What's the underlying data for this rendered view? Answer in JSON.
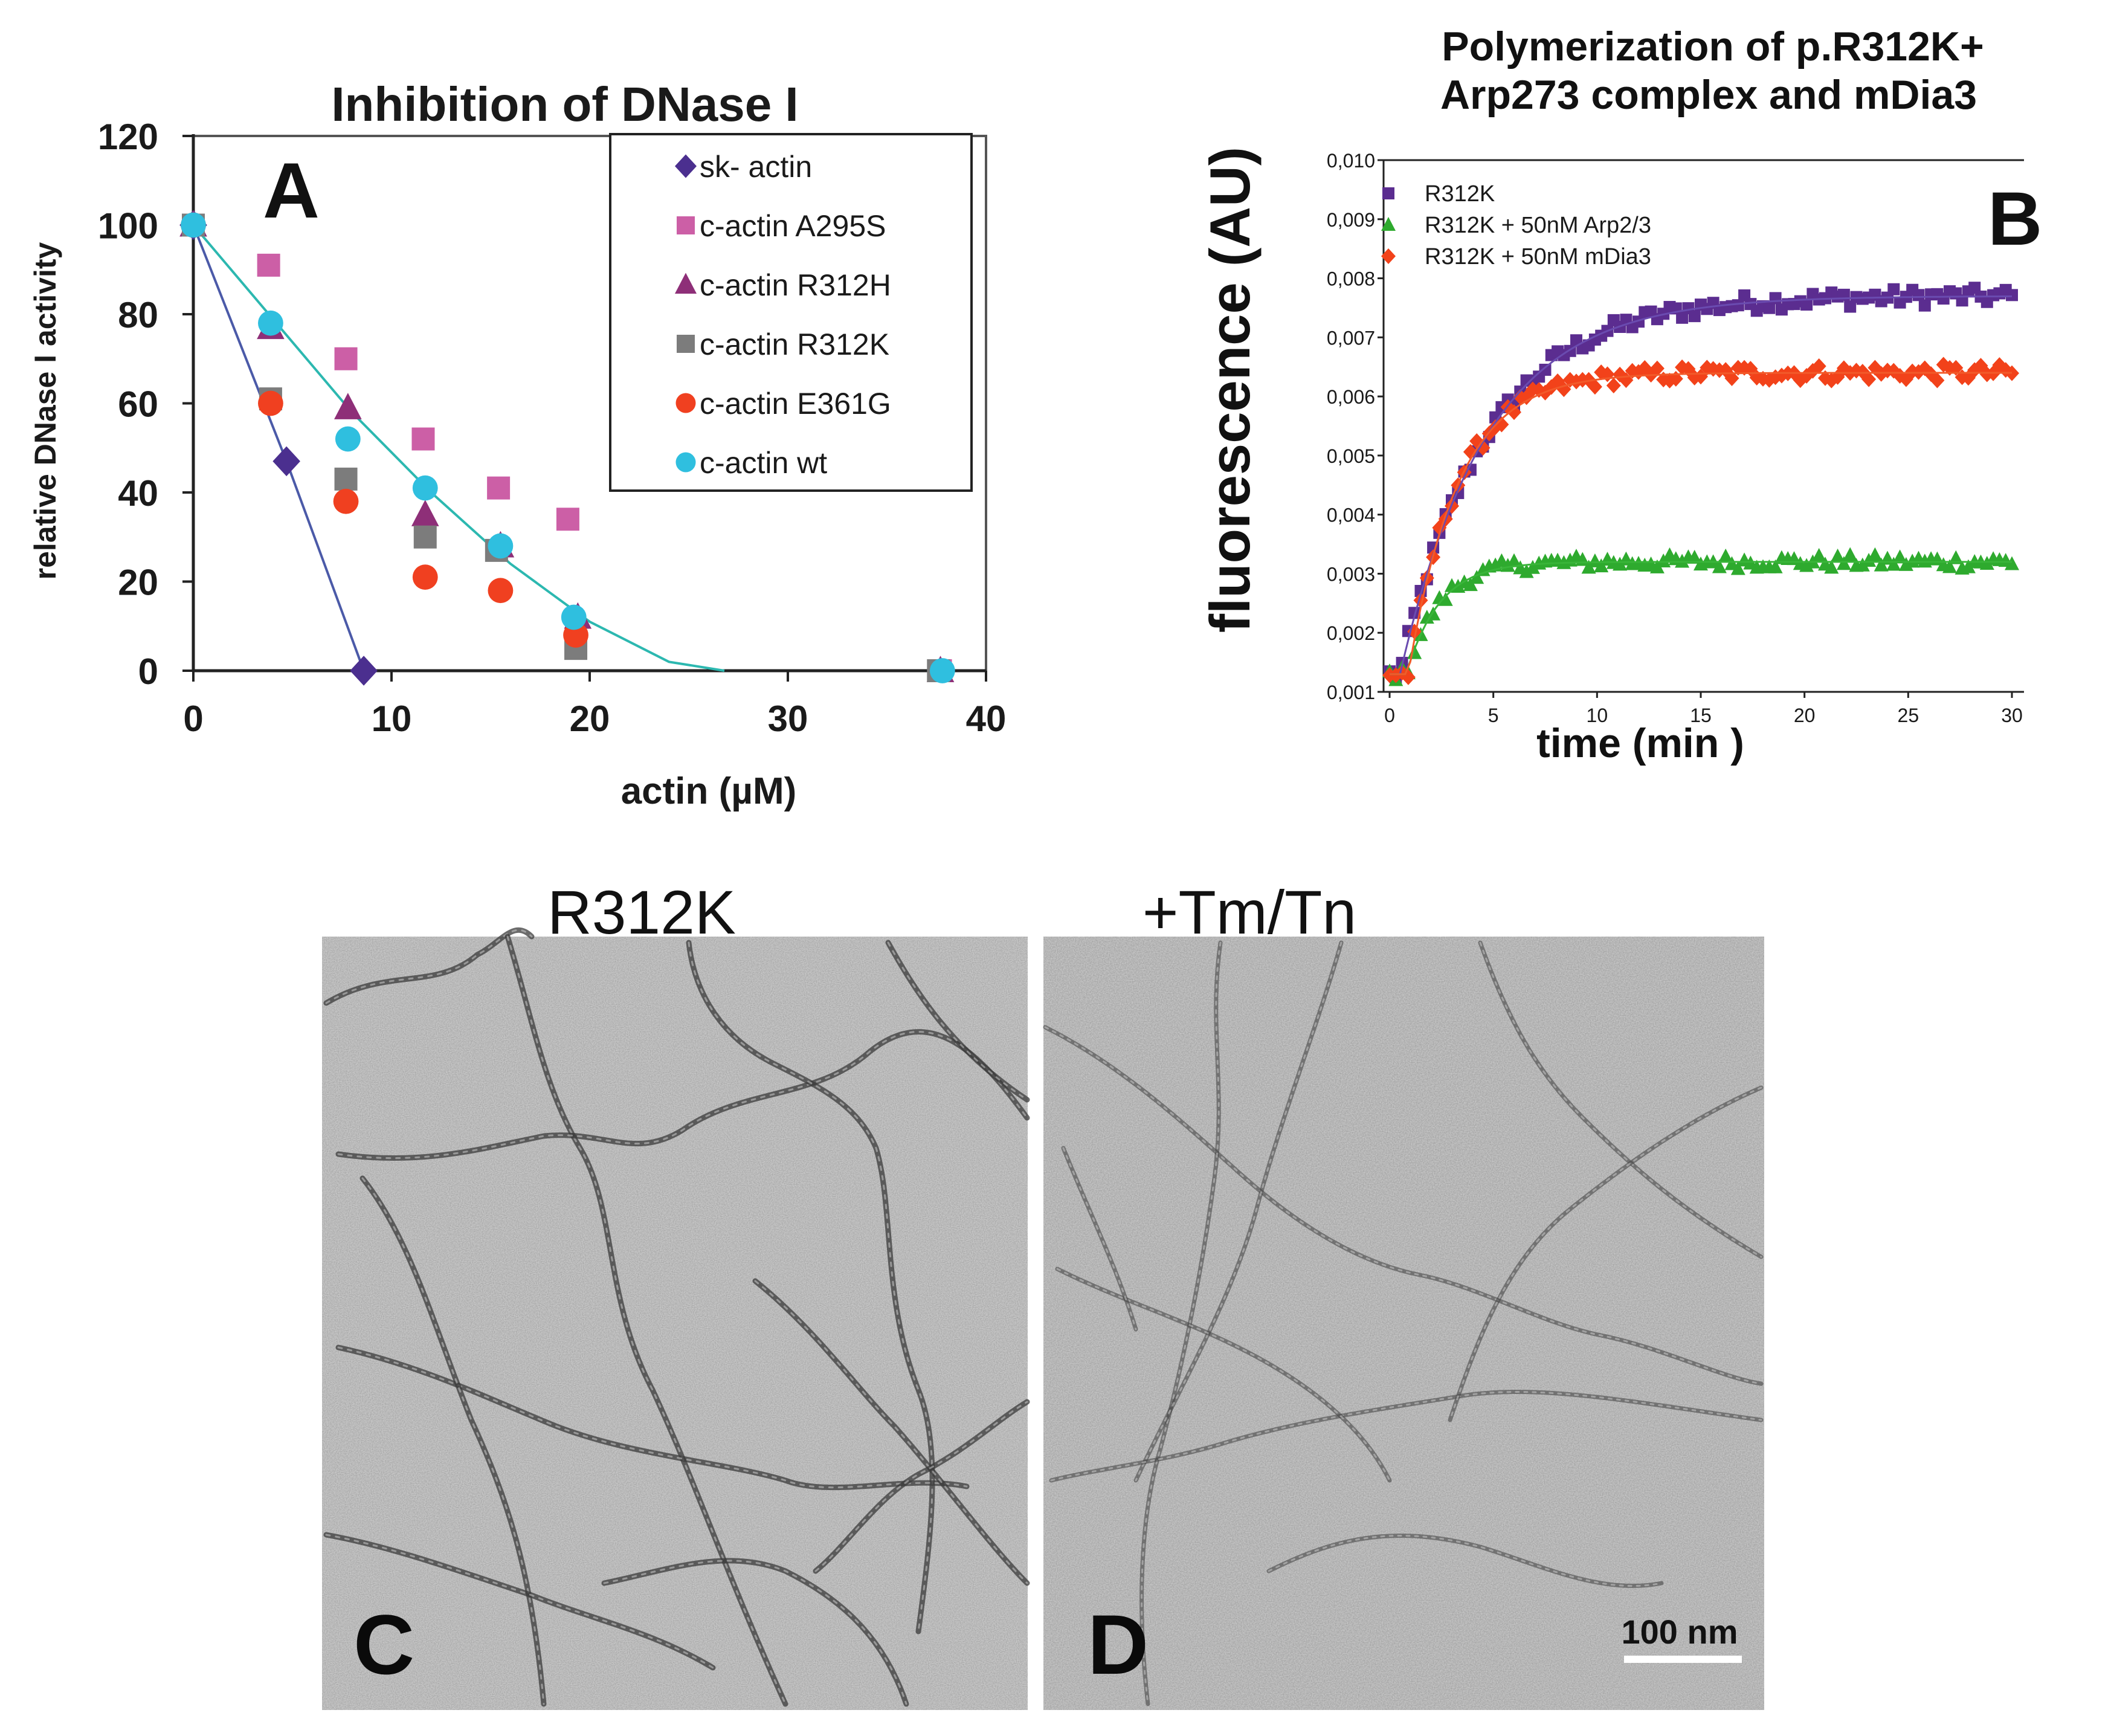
{
  "chart_data": [
    {
      "panel": "A",
      "type": "scatter",
      "title": "Inhibition of DNase I",
      "xlabel": "actin (µM)",
      "ylabel": "relative DNase  I activity",
      "xlim": [
        0,
        40
      ],
      "ylim": [
        0,
        120
      ],
      "xticks": [
        "0",
        "10",
        "20",
        "30",
        "40"
      ],
      "yticks": [
        "0",
        "20",
        "40",
        "60",
        "80",
        "100",
        "120"
      ],
      "legend_position": "top-right",
      "series": [
        {
          "name": "sk- actin",
          "marker": "diamond",
          "color": "#4b2f8f",
          "x": [
            0,
            4.7,
            8.6
          ],
          "y": [
            100,
            47,
            0
          ]
        },
        {
          "name": "c-actin A295S",
          "marker": "square",
          "color": "#cc5fa6",
          "x": [
            0,
            3.8,
            7.7,
            11.6,
            15.4,
            18.9,
            37.7
          ],
          "y": [
            100,
            91,
            70,
            52,
            41,
            34,
            0
          ]
        },
        {
          "name": "c-actin R312H",
          "marker": "triangle",
          "color": "#8e2f78",
          "x": [
            0,
            3.9,
            7.8,
            11.7,
            15.5,
            19.4,
            37.7
          ],
          "y": [
            100,
            77,
            59,
            35,
            28,
            12,
            0
          ]
        },
        {
          "name": "c-actin R312K",
          "marker": "square",
          "color": "#7c7c7c",
          "x": [
            0,
            3.9,
            7.7,
            11.7,
            15.3,
            19.3,
            37.6
          ],
          "y": [
            100,
            61,
            43,
            30,
            27,
            5,
            0
          ]
        },
        {
          "name": "c-actin E361G",
          "marker": "circle",
          "color": "#f04020",
          "x": [
            0,
            3.9,
            7.7,
            11.7,
            15.5,
            19.3
          ],
          "y": [
            100,
            60,
            38,
            21,
            18,
            8
          ]
        },
        {
          "name": "c-actin wt",
          "marker": "circle",
          "color": "#2fbfdf",
          "x": [
            0,
            3.9,
            7.8,
            11.7,
            15.5,
            19.2,
            37.8
          ],
          "y": [
            100,
            78,
            52,
            41,
            28,
            12,
            0
          ]
        }
      ],
      "fit_lines": [
        {
          "series": "sk- actin",
          "color": "#4b5aa8",
          "x": [
            0,
            4.7,
            8.6
          ],
          "y": [
            100,
            47,
            0
          ]
        },
        {
          "series": "c-actin wt",
          "color": "#2cb8b0",
          "x": [
            0,
            4,
            8,
            12,
            16,
            20,
            24,
            26.8
          ],
          "y": [
            100,
            79,
            58,
            40,
            24,
            11,
            2,
            0
          ]
        }
      ]
    },
    {
      "panel": "B",
      "type": "scatter",
      "title": "Polymerization of p.R312K+ Arp273 complex and mDia3",
      "xlabel": "time (min )",
      "ylabel": "fluorescence (AU)",
      "xlim": [
        0,
        30
      ],
      "ylim": [
        0.001,
        0.01
      ],
      "xticks": [
        "0",
        "5",
        "10",
        "15",
        "20",
        "25",
        "30"
      ],
      "yticks": [
        "0,001",
        "0,002",
        "0,003",
        "0,004",
        "0,005",
        "0,006",
        "0,007",
        "0,008",
        "0,009",
        "0,010"
      ],
      "legend_position": "top-left",
      "series": [
        {
          "name": "R312K",
          "marker": "square",
          "color": "#5b2d90",
          "model": {
            "y0": 0.0013,
            "plateau": 0.0077,
            "tau_min": 4.2,
            "t0_min": 0.5,
            "noise": 0.00015
          }
        },
        {
          "name": "R312K + 50nM Arp2/3",
          "marker": "triangle",
          "color": "#2eaa2e",
          "model": {
            "y0": 0.0013,
            "plateau": 0.0032,
            "tau_min": 1.6,
            "t0_min": 0.8,
            "noise": 0.00012
          }
        },
        {
          "name": "R312K + 50nM mDia3",
          "marker": "diamond",
          "color": "#f2421a",
          "model": {
            "y0": 0.0013,
            "plateau": 0.0064,
            "tau_min": 2.4,
            "t0_min": 0.9,
            "noise": 0.00014
          }
        }
      ],
      "fit_colors": [
        "#6a4bb0",
        "#39b539",
        "#f25a2a"
      ]
    }
  ],
  "panels": {
    "a_letter": "A",
    "b_letter": "B",
    "c_letter": "C",
    "d_letter": "D",
    "c_title": "R312K",
    "d_title": "+Tm/Tn",
    "scale_bar": "100 nm"
  }
}
